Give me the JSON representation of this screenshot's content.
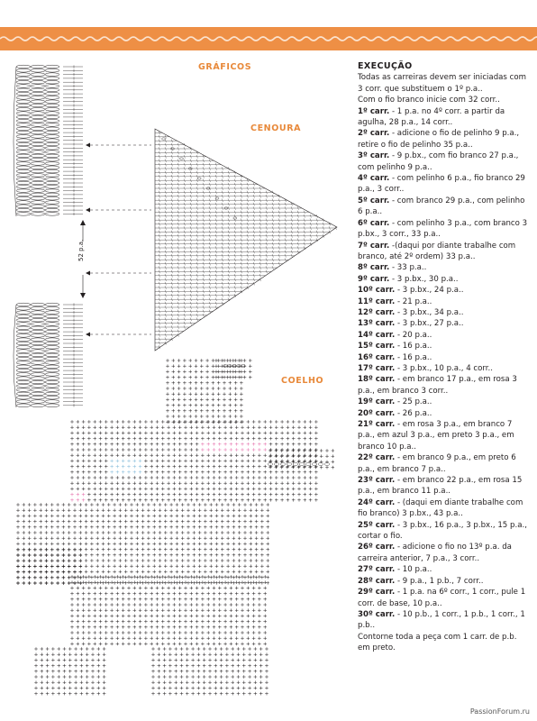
{
  "colors": {
    "accent": "#e8893a",
    "band_dots": "#fbe3cf",
    "pink": "#e56aa8",
    "blue": "#7fb8d8",
    "ink": "#231f20"
  },
  "sections": {
    "graficos": "GRÁFICOS",
    "cenoura": "CENOURA",
    "coelho": "COELHO"
  },
  "stitch_count_label": "52 p.a.",
  "instructions": {
    "heading": "EXECUÇÃO",
    "intro": "Todas as carreiras devem ser iniciadas com 3 corr. que substituem o 1º p.a..",
    "start": "Com o fio branco inicie com 32 corr..",
    "rows": [
      {
        "label": "1º carr.",
        "text": " - 1 p.a. no 4º corr. a partir da agulha, 28 p.a., 14 corr.."
      },
      {
        "label": "2º carr.",
        "text": " - adicione o fio de pelinho 9 p.a., retire o fio de pelinho 35 p.a.."
      },
      {
        "label": "3º carr.",
        "text": " - 9 p.bx., com fio branco 27 p.a., com pelinho 9 p.a.."
      },
      {
        "label": "4º carr.",
        "text": " - com pelinho 6 p.a., fio branco 29 p.a., 3 corr.."
      },
      {
        "label": "5º carr.",
        "text": " - com branco 29 p.a., com pelinho 6 p.a.."
      },
      {
        "label": "6º carr.",
        "text": " - com pelinho 3 p.a., com branco 3 p.bx., 3 corr., 33 p.a.."
      },
      {
        "label": "7º carr.",
        "text": " -(daqui por diante trabalhe com branco, até 2º ordem) 33 p.a.."
      },
      {
        "label": "8º carr.",
        "text": " - 33 p.a.."
      },
      {
        "label": "9º carr.",
        "text": " - 3 p.bx., 30 p.a.."
      },
      {
        "label": "10º carr.",
        "text": " - 3 p.bx., 24 p.a.."
      },
      {
        "label": "11º carr.",
        "text": " - 21 p.a.."
      },
      {
        "label": "12º carr.",
        "text": " - 3 p.bx., 34 p.a.."
      },
      {
        "label": "13º carr.",
        "text": " - 3 p.bx., 27 p.a.."
      },
      {
        "label": "14º carr.",
        "text": " - 20 p.a.."
      },
      {
        "label": "15º carr.",
        "text": " - 16 p.a.."
      },
      {
        "label": "16º carr.",
        "text": " - 16 p.a.."
      },
      {
        "label": "17º carr.",
        "text": " - 3 p.bx., 10 p.a., 4 corr.."
      },
      {
        "label": "18º carr.",
        "text": " - em branco 17 p.a., em rosa 3 p.a., em branco 3 corr.."
      },
      {
        "label": "19º carr.",
        "text": " - 25 p.a.."
      },
      {
        "label": "20º carr.",
        "text": " - 26 p.a.."
      },
      {
        "label": "21º carr.",
        "text": " - em rosa 3 p.a., em branco 7 p.a., em azul 3 p.a., em preto 3 p.a., em branco 10 p.a.."
      },
      {
        "label": "22º carr.",
        "text": " - em branco 9 p.a., em preto 6 p.a., em branco 7 p.a.."
      },
      {
        "label": "23º carr.",
        "text": " - em branco 22 p.a., em rosa 15 p.a., em branco 11 p.a.."
      },
      {
        "label": "24º carr.",
        "text": " - (daqui em diante trabalhe com fio branco) 3 p.bx., 43 p.a.."
      },
      {
        "label": "25º carr.",
        "text": " - 3 p.bx., 16 p.a., 3 p.bx., 15 p.a., cortar o fio."
      },
      {
        "label": "26º carr.",
        "text": " - adicione o fio no 13º p.a. da carreira anterior, 7 p.a., 3 corr.."
      },
      {
        "label": "27º carr.",
        "text": " - 10 p.a.."
      },
      {
        "label": "28º carr.",
        "text": " - 9 p.a., 1 p.b., 7 corr.."
      },
      {
        "label": "29º carr.",
        "text": " - 1 p.a. na 6º corr., 1 corr., pule 1 corr. de base, 10 p.a.."
      },
      {
        "label": "30º carr.",
        "text": " - 10 p.b., 1 corr., 1 p.b., 1 corr., 1 p.b.."
      }
    ],
    "finish": "Contorne toda a peça com 1 carr. de p.b. em preto."
  },
  "watermark": "PassionForum.ru"
}
